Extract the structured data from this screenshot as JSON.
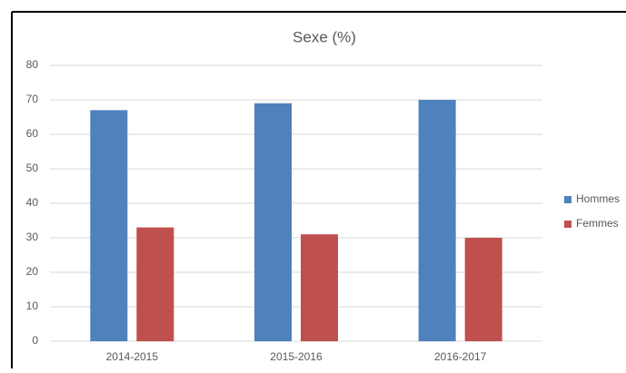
{
  "chart_data": {
    "type": "bar",
    "title": "Sexe (%)",
    "categories": [
      "2014-2015",
      "2015-2016",
      "2016-2017"
    ],
    "series": [
      {
        "name": "Hommes",
        "color": "#4f81bd",
        "values": [
          67,
          69,
          70
        ]
      },
      {
        "name": "Femmes",
        "color": "#c0504d",
        "values": [
          33,
          31,
          30
        ]
      }
    ],
    "ylim": [
      0,
      80
    ],
    "yticks": [
      0,
      10,
      20,
      30,
      40,
      50,
      60,
      70,
      80
    ],
    "grid": true,
    "legend": "right"
  }
}
